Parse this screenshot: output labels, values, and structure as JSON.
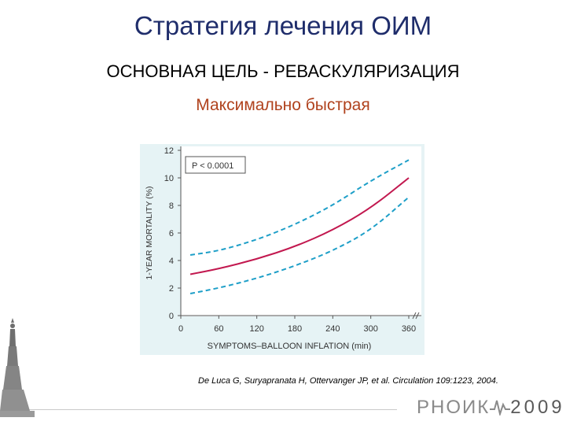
{
  "slide": {
    "title": "Стратегия лечения ОИМ",
    "subtitle": "ОСНОВНАЯ ЦЕЛЬ - РЕВАСКУЛЯРИЗАЦИЯ",
    "tagline": "Максимально быстрая",
    "citation": "De Luca G, Suryapranata H, Ottervanger JP, et al. Circulation 109:1223, 2004.",
    "logo_text": "РНОИК",
    "logo_year": "2009"
  },
  "colors": {
    "title": "#1f2d6b",
    "tagline": "#b0421d",
    "chart_bg": "#e6f3f5",
    "main_curve": "#c2184f",
    "ci_curve": "#1e9fc8"
  },
  "chart_data": {
    "type": "line",
    "xlabel": "SYMPTOMS–BALLOON INFLATION (min)",
    "ylabel": "1-YEAR MORTALITY (%)",
    "annotation": "P < 0.0001",
    "xlim": [
      0,
      360
    ],
    "ylim": [
      0,
      12
    ],
    "x_ticks": [
      "0",
      "60",
      "120",
      "180",
      "240",
      "300",
      "360"
    ],
    "y_ticks": [
      "0",
      "2",
      "4",
      "6",
      "8",
      "10",
      "12"
    ],
    "series": [
      {
        "style": "dashed",
        "color": "#1e9fc8",
        "x": [
          15,
          60,
          120,
          180,
          240,
          300,
          360
        ],
        "y": [
          4.4,
          4.7,
          5.5,
          6.6,
          8.0,
          9.8,
          11.3
        ]
      },
      {
        "style": "solid",
        "color": "#c2184f",
        "x": [
          15,
          60,
          120,
          180,
          240,
          300,
          360
        ],
        "y": [
          3.0,
          3.4,
          4.1,
          5.0,
          6.2,
          7.8,
          10.0
        ]
      },
      {
        "style": "dashed",
        "color": "#1e9fc8",
        "x": [
          15,
          60,
          120,
          180,
          240,
          300,
          360
        ],
        "y": [
          1.6,
          2.0,
          2.7,
          3.6,
          4.7,
          6.2,
          8.6
        ]
      }
    ]
  }
}
